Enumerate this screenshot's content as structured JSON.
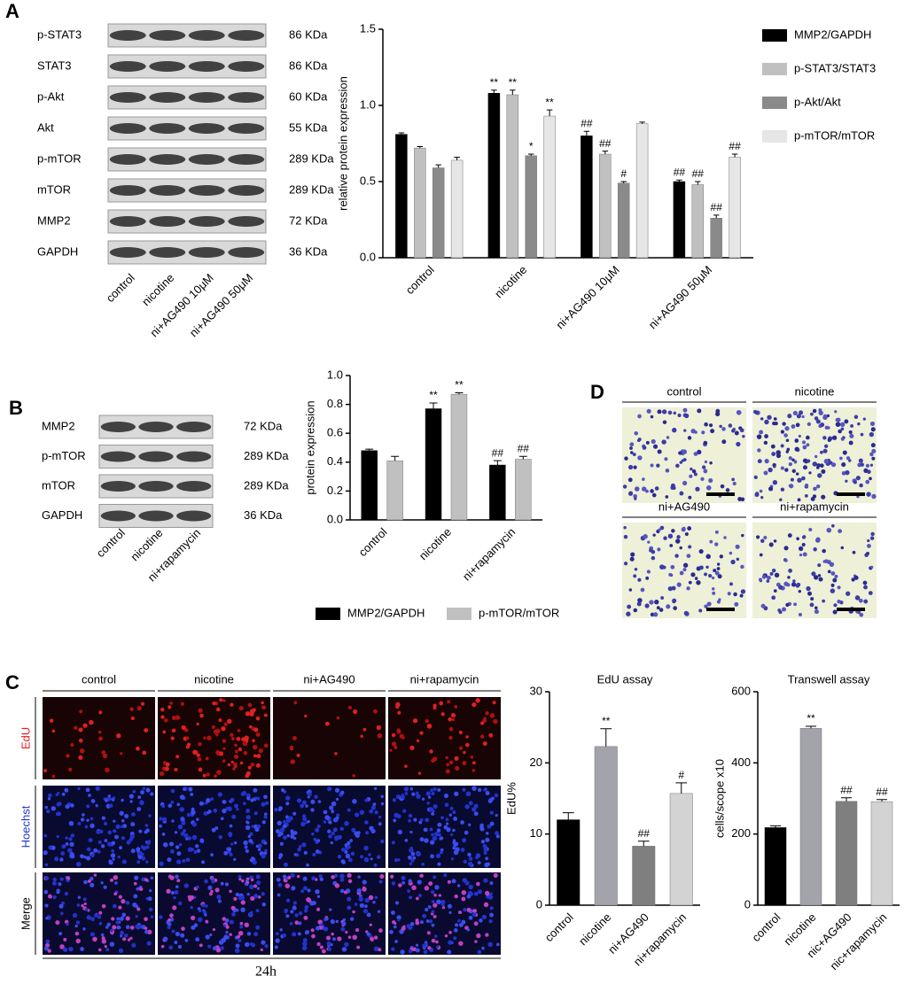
{
  "panel_labels": [
    "A",
    "B",
    "C",
    "D"
  ],
  "blot_a": {
    "proteins": [
      "p-STAT3",
      "STAT3",
      "p-Akt",
      "Akt",
      "p-mTOR",
      "mTOR",
      "MMP2",
      "GAPDH"
    ],
    "sizes": [
      "86 KDa",
      "86 KDa",
      "60 KDa",
      "55 KDa",
      "289 KDa",
      "289 KDa",
      "72 KDa",
      "36 KDa"
    ],
    "lanes": [
      "control",
      "nicotine",
      "ni+AG490 10μM",
      "ni+AG490 50μM"
    ]
  },
  "blot_b": {
    "proteins": [
      "MMP2",
      "p-mTOR",
      "mTOR",
      "GAPDH"
    ],
    "sizes": [
      "72 KDa",
      "289 KDa",
      "289 KDa",
      "36 KDa"
    ],
    "lanes": [
      "control",
      "nicotine",
      "ni+rapamycin"
    ]
  },
  "panel_c": {
    "columns": [
      "control",
      "nicotine",
      "ni+AG490",
      "ni+rapamycin"
    ],
    "rows": [
      "EdU",
      "Hoechst",
      "Merge"
    ],
    "time": "24h"
  },
  "panel_d": {
    "labels": [
      "control",
      "nicotine",
      "ni+AG490",
      "ni+rapamycin"
    ]
  },
  "chart_data": [
    {
      "type": "bar",
      "ylabel": "relative protein expression",
      "categories": [
        "control",
        "nicotine",
        "ni+AG490 10μM",
        "ni+AG490 50μM"
      ],
      "ylim": [
        0,
        1.5
      ],
      "yticks": [
        {
          "value": 0,
          "label": "0.0"
        },
        0.5,
        {
          "value": 1,
          "label": "1.0"
        },
        1.5
      ],
      "legend": "right",
      "series": [
        {
          "name": "MMP2/GAPDH",
          "color": "#000000",
          "values": [
            0.81,
            1.08,
            0.8,
            0.5
          ],
          "errors": [
            0.01,
            0.02,
            0.03,
            0.01
          ],
          "marks": [
            null,
            "**",
            "##",
            "##"
          ]
        },
        {
          "name": "p-STAT3/STAT3",
          "color": "#c0c0c0",
          "values": [
            0.72,
            1.07,
            0.68,
            0.48
          ],
          "errors": [
            0.01,
            0.03,
            0.02,
            0.02
          ],
          "marks": [
            null,
            "**",
            "##",
            "##"
          ]
        },
        {
          "name": "p-Akt/Akt",
          "color": "#8a8a8a",
          "values": [
            0.59,
            0.67,
            0.49,
            0.26
          ],
          "errors": [
            0.02,
            0.01,
            0.01,
            0.02
          ],
          "marks": [
            null,
            "*",
            "#",
            "##"
          ]
        },
        {
          "name": "p-mTOR/mTOR",
          "color": "#e6e6e6",
          "values": [
            0.64,
            0.93,
            0.88,
            0.66
          ],
          "errors": [
            0.02,
            0.04,
            0.01,
            0.02
          ],
          "marks": [
            null,
            "**",
            null,
            "##"
          ]
        }
      ]
    },
    {
      "type": "bar",
      "ylabel": "protein expression",
      "categories": [
        "control",
        "nicotine",
        "ni+rapamycin"
      ],
      "ylim": [
        0,
        1
      ],
      "yticks": [
        {
          "value": 0,
          "label": "0.0"
        },
        0.2,
        0.4,
        0.6,
        0.8,
        {
          "value": 1,
          "label": "1.0"
        }
      ],
      "legend": "bottom",
      "series": [
        {
          "name": "MMP2/GAPDH",
          "color": "#000000",
          "values": [
            0.48,
            0.77,
            0.38
          ],
          "errors": [
            0.01,
            0.04,
            0.03
          ],
          "marks": [
            null,
            "**",
            "##"
          ]
        },
        {
          "name": "p-mTOR/mTOR",
          "color": "#c0c0c0",
          "values": [
            0.41,
            0.87,
            0.42
          ],
          "errors": [
            0.03,
            0.01,
            0.02
          ],
          "marks": [
            null,
            "**",
            "##"
          ]
        }
      ]
    },
    {
      "type": "bar",
      "title": "EdU assay",
      "ylabel": "EdU%",
      "categories": [
        "control",
        "nicotine",
        "ni+AG490",
        "ni+rapamycin"
      ],
      "values": [
        12,
        22.3,
        8.3,
        15.7
      ],
      "errors": [
        1,
        2.5,
        0.7,
        1.5
      ],
      "marks": [
        null,
        "**",
        "##",
        "#"
      ],
      "colors": [
        "#000000",
        "#a3a3ab",
        "#7f7f7f",
        "#d3d3d3"
      ],
      "ylim": [
        0,
        30
      ],
      "yticks": [
        0,
        10,
        20,
        30
      ]
    },
    {
      "type": "bar",
      "title": "Transwell assay",
      "ylabel": "cells/scope x10",
      "categories": [
        "control",
        "nicotine",
        "nic+AG490",
        "nic+rapamycin"
      ],
      "values": [
        218,
        497,
        292,
        291
      ],
      "errors": [
        5,
        6,
        10,
        6
      ],
      "marks": [
        null,
        "**",
        "##",
        "##"
      ],
      "colors": [
        "#000000",
        "#a3a3ab",
        "#7f7f7f",
        "#d3d3d3"
      ],
      "ylim": [
        0,
        600
      ],
      "yticks": [
        0,
        200,
        400,
        600
      ]
    }
  ]
}
